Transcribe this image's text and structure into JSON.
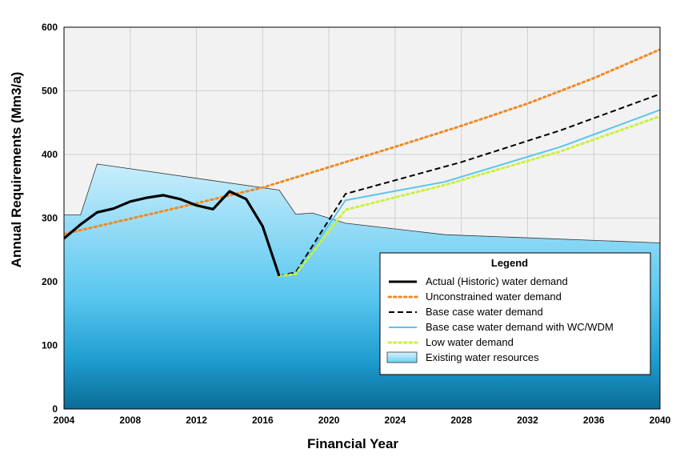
{
  "chart_data": {
    "type": "line",
    "xlabel": "Financial Year",
    "ylabel": "Annual Requirements (Mm3/a)",
    "xlim": [
      2004,
      2040
    ],
    "ylim": [
      0,
      600
    ],
    "x_ticks": [
      "2004",
      "2008",
      "2012",
      "2016",
      "2020",
      "2024",
      "2028",
      "2032",
      "2036",
      "2040"
    ],
    "y_ticks": [
      "0",
      "100",
      "200",
      "300",
      "400",
      "500",
      "600"
    ],
    "grid": true,
    "legend_title": "Legend",
    "legend_position": "bottom-right",
    "series": [
      {
        "name": "Existing water resources",
        "style": "area",
        "color": "#7fd3f3",
        "x": [
          2004,
          2005,
          2006,
          2017,
          2018,
          2019,
          2021,
          2027,
          2040
        ],
        "y": [
          305,
          305,
          385,
          344,
          306,
          308,
          292,
          274,
          261
        ]
      },
      {
        "name": "Unconstrained water demand",
        "style": "dotted",
        "color": "#f08a24",
        "x": [
          2004,
          2010,
          2016,
          2020,
          2024,
          2028,
          2032,
          2036,
          2040
        ],
        "y": [
          275,
          311,
          348,
          380,
          412,
          445,
          480,
          520,
          565
        ]
      },
      {
        "name": "Base case water demand",
        "style": "dashed",
        "color": "#000000",
        "x": [
          2017,
          2018,
          2021,
          2028,
          2034,
          2040
        ],
        "y": [
          209,
          215,
          338,
          388,
          438,
          495
        ]
      },
      {
        "name": "Base case water demand with WC/WDM",
        "style": "solid",
        "color": "#5bc4ef",
        "x": [
          2017,
          2018,
          2021,
          2027,
          2034,
          2040
        ],
        "y": [
          209,
          212,
          328,
          357,
          412,
          470
        ]
      },
      {
        "name": "Low water demand",
        "style": "dotted",
        "color": "#c9f23c",
        "x": [
          2017,
          2018,
          2021,
          2027,
          2034,
          2040
        ],
        "y": [
          209,
          212,
          313,
          352,
          405,
          460
        ]
      },
      {
        "name": "Actual (Historic) water demand",
        "style": "solid-bold",
        "color": "#000000",
        "x": [
          2004,
          2005,
          2006,
          2007,
          2008,
          2009,
          2010,
          2011,
          2012,
          2013,
          2014,
          2015,
          2016,
          2017
        ],
        "y": [
          268,
          290,
          309,
          315,
          326,
          332,
          336,
          330,
          320,
          314,
          342,
          330,
          287,
          209
        ]
      }
    ],
    "legend_order": [
      "Actual (Historic) water demand",
      "Unconstrained water demand",
      "Base case water demand",
      "Base case water demand with WC/WDM",
      "Low water demand",
      "Existing water resources"
    ]
  }
}
